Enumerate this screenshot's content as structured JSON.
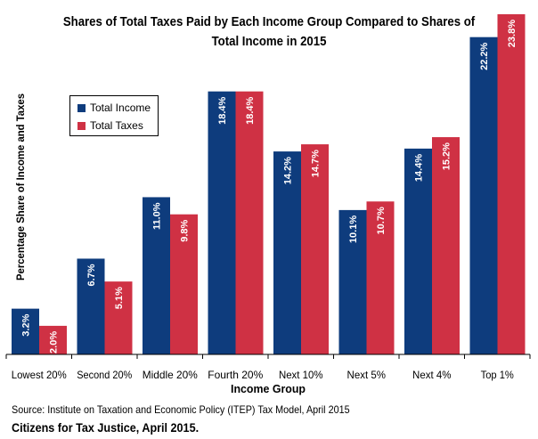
{
  "chart_data": {
    "type": "bar",
    "title": "Shares of Total Taxes Paid by Each Income Group Compared to Shares of Total Income in 2015",
    "title_lines": [
      "Shares of Total Taxes Paid by Each Income Group Compared to Shares of",
      "Total Income in 2015"
    ],
    "xlabel": "Income Group",
    "ylabel": "Percentage Share of Income and Taxes",
    "categories": [
      "Lowest 20%",
      "Second 20%",
      "Middle 20%",
      "Fourth 20%",
      "Next 10%",
      "Next 5%",
      "Next 4%",
      "Top 1%"
    ],
    "series": [
      {
        "name": "Total Income",
        "color": "#0e3c7d",
        "values": [
          3.2,
          6.7,
          11.0,
          18.4,
          14.2,
          10.1,
          14.4,
          22.2
        ],
        "labels": [
          "3.2%",
          "6.7%",
          "11.0%",
          "18.4%",
          "14.2%",
          "10.1%",
          "14.4%",
          "22.2%"
        ]
      },
      {
        "name": "Total Taxes",
        "color": "#cf3144",
        "values": [
          2.0,
          5.1,
          9.8,
          18.4,
          14.7,
          10.7,
          15.2,
          23.8
        ],
        "labels": [
          "2.0%",
          "5.1%",
          "9.8%",
          "18.4%",
          "14.7%",
          "10.7%",
          "15.2%",
          "23.8%"
        ]
      }
    ],
    "ylim": [
      0,
      23.8
    ],
    "grid": false,
    "legend_position": "top-left"
  },
  "footer": {
    "source": "Source: Institute on Taxation and Economic Policy (ITEP) Tax Model, April 2015",
    "credit": "Citizens for Tax Justice, April 2015."
  }
}
